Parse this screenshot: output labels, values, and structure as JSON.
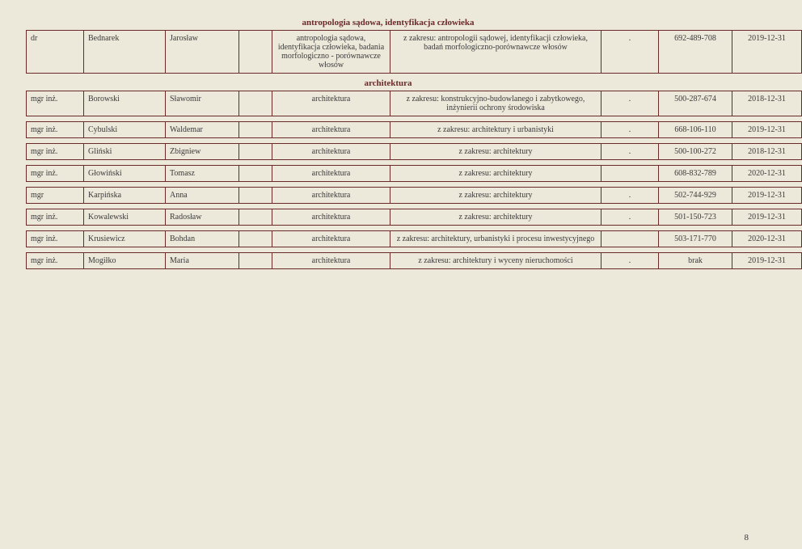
{
  "page_number": "8",
  "background_color": "#ece8da",
  "border_color": "#6a2a2a",
  "heading_color": "#6a2a2a",
  "text_color": "#3a3a3a",
  "font_family": "Georgia serif",
  "sections": [
    {
      "heading": "antropologia sądowa, identyfikacja człowieka",
      "rows": [
        {
          "title": "dr",
          "surname": "Bednarek",
          "name": "Jarosław",
          "empty1": "",
          "spec": "antropologia sądowa, identyfikacja człowieka, badania morfologiczno - porównawcze włosów",
          "scope": "z zakresu: antropologii sądowej, identyfikacji człowieka, badań morfologiczno-porównawcze włosów",
          "dot": ".",
          "phone": "692-489-708",
          "date": "2019-12-31"
        }
      ]
    },
    {
      "heading": "architektura",
      "rows": [
        {
          "title": "mgr inż.",
          "surname": "Borowski",
          "name": "Sławomir",
          "empty1": "",
          "spec": "architektura",
          "scope": "z zakresu: konstrukcyjno-budowlanego i zabytkowego, inżynierii ochrony środowiska",
          "dot": ".",
          "phone": "500-287-674",
          "date": "2018-12-31"
        }
      ]
    },
    {
      "heading": "",
      "rows": [
        {
          "title": "mgr inż.",
          "surname": "Cybulski",
          "name": "Waldemar",
          "empty1": "",
          "spec": "architektura",
          "scope": "z zakresu: architektury i urbanistyki",
          "dot": ".",
          "phone": "668-106-110",
          "date": "2019-12-31"
        }
      ]
    },
    {
      "heading": "",
      "rows": [
        {
          "title": "mgr inż.",
          "surname": "Gliński",
          "name": "Zbigniew",
          "empty1": "",
          "spec": "architektura",
          "scope": "z zakresu: architektury",
          "dot": ".",
          "phone": "500-100-272",
          "date": "2018-12-31"
        }
      ]
    },
    {
      "heading": "",
      "rows": [
        {
          "title": "mgr inż.",
          "surname": "Głowiński",
          "name": "Tomasz",
          "empty1": "",
          "spec": "architektura",
          "scope": "z zakresu: architektury",
          "dot": "",
          "phone": "608-832-789",
          "date": "2020-12-31"
        }
      ]
    },
    {
      "heading": "",
      "rows": [
        {
          "title": "mgr",
          "surname": "Karpińska",
          "name": "Anna",
          "empty1": "",
          "spec": "architektura",
          "scope": "z zakresu: architektury",
          "dot": ".",
          "phone": "502-744-929",
          "date": "2019-12-31"
        }
      ]
    },
    {
      "heading": "",
      "rows": [
        {
          "title": "mgr inż.",
          "surname": "Kowalewski",
          "name": "Radosław",
          "empty1": "",
          "spec": "architektura",
          "scope": "z zakresu: architektury",
          "dot": ".",
          "phone": "501-150-723",
          "date": "2019-12-31"
        }
      ]
    },
    {
      "heading": "",
      "rows": [
        {
          "title": "mgr inż.",
          "surname": "Krusiewicz",
          "name": "Bohdan",
          "empty1": "",
          "spec": "architektura",
          "scope": "z zakresu: architektury, urbanistyki i procesu inwestycyjnego",
          "dot": "",
          "phone": "503-171-770",
          "date": "2020-12-31"
        }
      ]
    },
    {
      "heading": "",
      "rows": [
        {
          "title": "mgr inż.",
          "surname": "Mogiłko",
          "name": "Maria",
          "empty1": "",
          "spec": "architektura",
          "scope": "z zakresu: architektury i wyceny nieruchomości",
          "dot": ".",
          "phone": "brak",
          "date": "2019-12-31"
        }
      ]
    }
  ]
}
